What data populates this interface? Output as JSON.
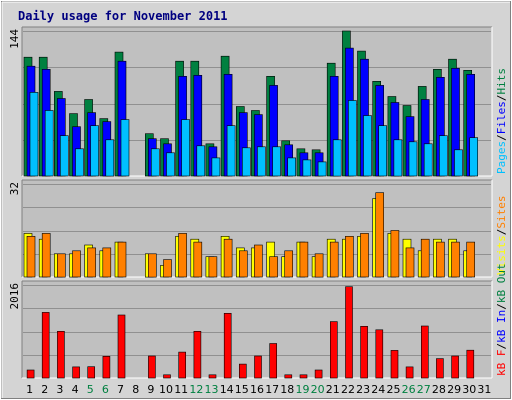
{
  "chart_data": {
    "type": "bar",
    "title": "Daily usage for November 2011",
    "categories": [
      "1",
      "2",
      "3",
      "4",
      "5",
      "6",
      "7",
      "8",
      "9",
      "10",
      "11",
      "12",
      "13",
      "14",
      "15",
      "16",
      "17",
      "18",
      "19",
      "20",
      "21",
      "22",
      "23",
      "24",
      "25",
      "26",
      "27",
      "28",
      "29",
      "30",
      "31"
    ],
    "weekend_days": [
      "5",
      "6",
      "12",
      "13",
      "19",
      "20",
      "26",
      "27"
    ],
    "panels": [
      {
        "id": "requests",
        "ylabel_top": "144",
        "ymax": 144,
        "side_labels": [
          "Pages",
          "Files",
          "Hits"
        ],
        "side_label_separator": "/",
        "series": [
          {
            "name": "Hits",
            "color": "#008040",
            "values": [
              118,
              118,
              84,
              62,
              76,
              57,
              123,
              0,
              42,
              37,
              114,
              114,
              32,
              119,
              69,
              65,
              99,
              35,
              27,
              26,
              112,
              144,
              124,
              94,
              79,
              70,
              89,
              106,
              116,
              105,
              0
            ]
          },
          {
            "name": "Files",
            "color": "#0000ff",
            "values": [
              109,
              106,
              77,
              49,
              63,
              54,
              114,
              0,
              37,
              32,
              99,
              100,
              29,
              101,
              63,
              61,
              90,
              31,
              23,
              23,
              99,
              127,
              116,
              90,
              73,
              59,
              76,
              98,
              107,
              101,
              0
            ]
          },
          {
            "name": "Pages",
            "color": "#00c0ff",
            "values": [
              83,
              65,
              40,
              27,
              50,
              36,
              56,
              0,
              27,
              23,
              56,
              30,
              18,
              50,
              28,
              29,
              29,
              18,
              16,
              14,
              36,
              75,
              60,
              50,
              36,
              34,
              32,
              40,
              26,
              38,
              0
            ]
          }
        ]
      },
      {
        "id": "visits",
        "ylabel_top": "32",
        "ymax": 32,
        "side_labels": [
          "Visits",
          "Sites"
        ],
        "side_label_separator": "/",
        "series": [
          {
            "name": "Visits",
            "color": "#ffff00",
            "values": [
              15,
              13,
              8,
              8,
              11,
              9,
              12,
              0,
              8,
              4,
              14,
              13,
              7,
              14,
              10,
              10,
              12,
              7,
              12,
              7,
              13,
              13,
              14,
              27,
              15,
              13,
              9,
              13,
              13,
              9,
              0
            ]
          },
          {
            "name": "Sites",
            "color": "#ff8000",
            "values": [
              14,
              15,
              8,
              9,
              10,
              10,
              12,
              0,
              8,
              6,
              15,
              12,
              7,
              13,
              9,
              11,
              7,
              9,
              12,
              8,
              12,
              14,
              15,
              29,
              16,
              10,
              13,
              12,
              12,
              12,
              0
            ]
          }
        ]
      },
      {
        "id": "kbytes",
        "ylabel_top": "2016",
        "ymax": 2016,
        "side_labels": [
          "kB F",
          "kB In",
          "kB Out"
        ],
        "side_label_separator": "/",
        "series": [
          {
            "name": "kB F",
            "color": "#ff0000",
            "values": [
              173,
              1423,
              1012,
              241,
              246,
              471,
              1366,
              0,
              476,
              69,
              561,
              1012,
              69,
              1402,
              301,
              476,
              748,
              69,
              69,
              173,
              1223,
              1980,
              1121,
              1044,
              598,
              241,
              1128,
              421,
              476,
              603,
              0
            ]
          }
        ]
      }
    ]
  },
  "colors": {
    "panel_bg": "#c0c0c0",
    "frame_bg": "#d4d4d4",
    "title": "#000080",
    "grid": "#909090",
    "side_separator": "#000000",
    "weekday_label": "#000000",
    "weekend_label": "#008040"
  }
}
